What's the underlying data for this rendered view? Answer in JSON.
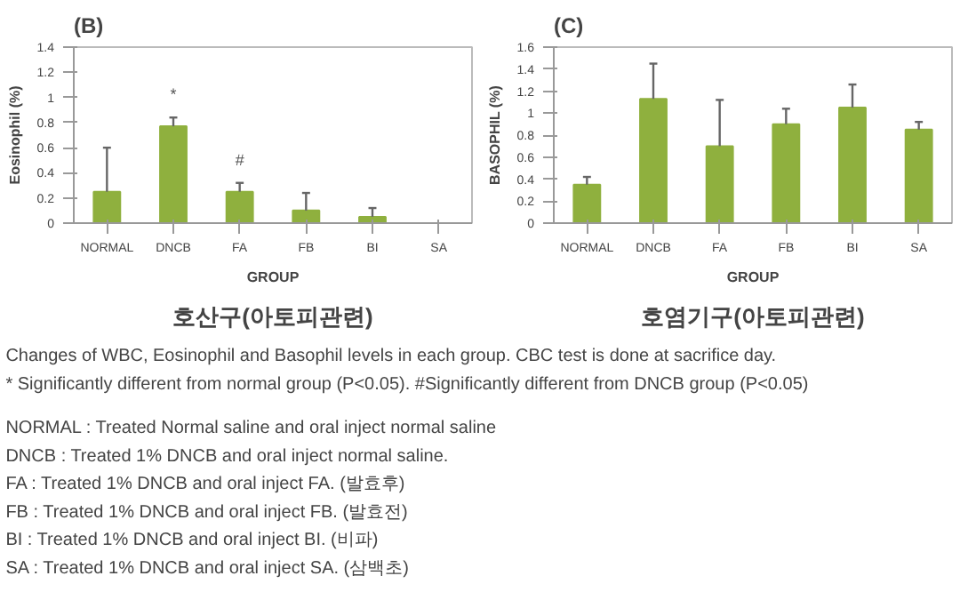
{
  "chart_data": [
    {
      "type": "bar",
      "title": "(B)",
      "subtitle": "호산구(아토피관련)",
      "xlabel": "GROUP",
      "ylabel": "Eosinophil (%)",
      "categories": [
        "NORMAL",
        "DNCB",
        "FA",
        "FB",
        "BI",
        "SA"
      ],
      "values": [
        0.25,
        0.77,
        0.25,
        0.1,
        0.05,
        0
      ],
      "color": "#8fb03e",
      "errors": [
        [
          0.25,
          0.6
        ],
        [
          0.77,
          0.84
        ],
        [
          0.25,
          0.32
        ],
        [
          0.1,
          0.24
        ],
        [
          0.05,
          0.12
        ],
        null
      ],
      "ylim": [
        0,
        1.4
      ],
      "yticks": [
        0,
        0.2,
        0.4,
        0.6,
        0.8,
        1,
        1.2,
        1.4
      ],
      "annotations": [
        {
          "text": "*",
          "x": "DNCB",
          "y": 0.84
        },
        {
          "text": "#",
          "x": "FA",
          "y": 0.32
        }
      ]
    },
    {
      "type": "bar",
      "title": "(C)",
      "subtitle": "호염기구(아토피관련)",
      "xlabel": "GROUP",
      "ylabel": "BASOPHIL (%)",
      "categories": [
        "NORMAL",
        "DNCB",
        "FA",
        "FB",
        "BI",
        "SA"
      ],
      "values": [
        0.35,
        1.13,
        0.7,
        0.9,
        1.05,
        0.85
      ],
      "color": "#8fb03e",
      "errors": [
        [
          0.35,
          0.42
        ],
        [
          1.13,
          1.45
        ],
        [
          0.7,
          1.12
        ],
        [
          0.9,
          1.04
        ],
        [
          1.05,
          1.26
        ],
        [
          0.85,
          0.92
        ]
      ],
      "ylim": [
        0,
        1.6
      ],
      "yticks": [
        0,
        0.2,
        0.4,
        0.6,
        0.8,
        1,
        1.2,
        1.4,
        1.6
      ]
    },
    {
      "type": "other",
      "annotations": [
        "Changes of WBC, Eosinophil and Basophil levels in each group. CBC test is done at sacrifice day.",
        "* Significantly different from normal group (P<0.05). #Significantly different from DNCB group (P<0.05)",
        "NORMAL : Treated Normal saline and oral inject normal saline",
        "DNCB : Treated 1% DNCB and oral inject normal saline.",
        "FA : Treated 1% DNCB and oral inject FA. (발효후)",
        "FB : Treated 1% DNCB and oral inject FB. (발효전)",
        "BI : Treated 1% DNCB and oral inject BI. (비파)",
        "SA : Treated 1% DNCB and oral inject SA. (삼백초)"
      ]
    }
  ]
}
